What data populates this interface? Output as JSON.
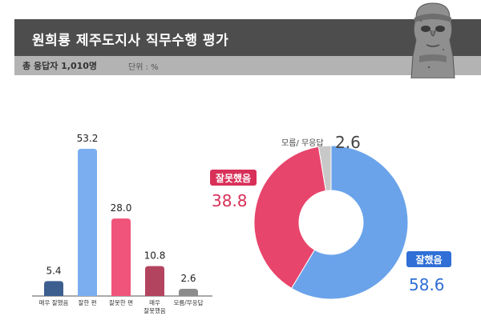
{
  "header": {
    "title": "원희룡 제주도지사 직무수행 평가",
    "respondents": "총 응답자 1,010명",
    "unit": "단위 : %"
  },
  "chart_data": [
    {
      "type": "bar",
      "categories": [
        "매우 잘했음",
        "잘한 편",
        "잘못한 편",
        "매우 잘못했음",
        "모름/무응답"
      ],
      "category_lines": [
        [
          "매우 잘했음"
        ],
        [
          "잘한 편"
        ],
        [
          "잘못한 편"
        ],
        [
          "매우",
          "잘못했음"
        ],
        [
          "모름/무응답"
        ]
      ],
      "values": [
        5.4,
        53.2,
        28.0,
        10.8,
        2.6
      ],
      "value_labels": [
        "5.4",
        "53.2",
        "28.0",
        "10.8",
        "2.6"
      ],
      "colors": [
        "#3d5f8f",
        "#7aaef0",
        "#f0547a",
        "#b3445f",
        "#8c8c8c"
      ],
      "ylim": [
        0,
        53.2
      ]
    },
    {
      "type": "pie",
      "style": "donut",
      "slices": [
        {
          "label": "잘했음",
          "value": 58.6,
          "value_label": "58.6",
          "color": "#6aa3ea",
          "label_color": "#2f6fd6"
        },
        {
          "label": "잘못했음",
          "value": 38.8,
          "value_label": "38.8",
          "color": "#e8456c",
          "label_color": "#d83058"
        },
        {
          "label": "모름/ 무응답",
          "value": 2.6,
          "value_label": "2.6",
          "color": "#c8c8c8",
          "label_color": "#444444"
        }
      ]
    }
  ]
}
